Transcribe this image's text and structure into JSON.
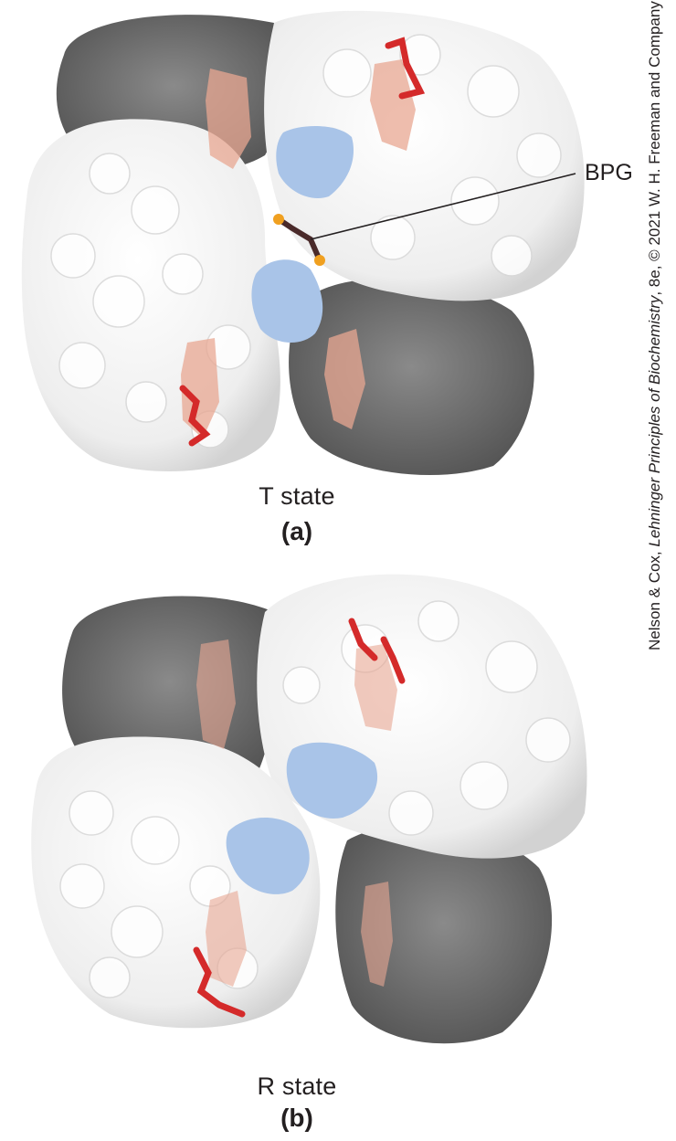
{
  "panel_a": {
    "state_label": "T state",
    "panel_letter": "(a)",
    "callout": "BPG"
  },
  "panel_b": {
    "state_label": "R state",
    "panel_letter": "(b)"
  },
  "credit": {
    "prefix": "Nelson & Cox, ",
    "book_title": "Lehninger Principles of Biochemistry",
    "suffix": ", 8e, © 2021 W. H. Freeman and Company"
  },
  "colors": {
    "subunit_light": "#f1f1f1",
    "subunit_dark": "#6c6c6c",
    "contact_blue": "#a9c4e8",
    "heme": "#e8a792",
    "residue_red": "#d42a2a",
    "bpg_phosphate": "#f0a020"
  }
}
